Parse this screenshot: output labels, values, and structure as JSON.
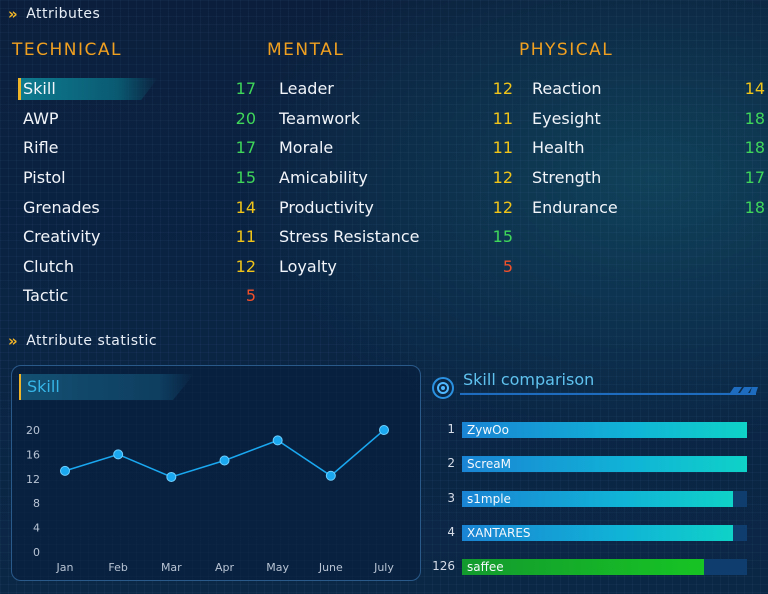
{
  "header": {
    "title": "Attributes"
  },
  "technical": {
    "title": "TECHNICAL",
    "items": [
      {
        "label": "Skill",
        "value": "17",
        "tier": "green"
      },
      {
        "label": "AWP",
        "value": "20",
        "tier": "green"
      },
      {
        "label": "Rifle",
        "value": "17",
        "tier": "green"
      },
      {
        "label": "Pistol",
        "value": "15",
        "tier": "green"
      },
      {
        "label": "Grenades",
        "value": "14",
        "tier": "yellow"
      },
      {
        "label": "Creativity",
        "value": "11",
        "tier": "yellow"
      },
      {
        "label": "Clutch",
        "value": "12",
        "tier": "yellow"
      },
      {
        "label": "Tactic",
        "value": "5",
        "tier": "red"
      }
    ]
  },
  "mental": {
    "title": "MENTAL",
    "items": [
      {
        "label": "Leader",
        "value": "12",
        "tier": "yellow"
      },
      {
        "label": "Teamwork",
        "value": "11",
        "tier": "yellow"
      },
      {
        "label": "Morale",
        "value": "11",
        "tier": "yellow"
      },
      {
        "label": "Amicability",
        "value": "12",
        "tier": "yellow"
      },
      {
        "label": "Productivity",
        "value": "12",
        "tier": "yellow"
      },
      {
        "label": "Stress Resistance",
        "value": "15",
        "tier": "green"
      },
      {
        "label": "Loyalty",
        "value": "5",
        "tier": "red"
      }
    ]
  },
  "physical": {
    "title": "PHYSICAL",
    "items": [
      {
        "label": "Reaction",
        "value": "14",
        "tier": "yellow"
      },
      {
        "label": "Eyesight",
        "value": "18",
        "tier": "green"
      },
      {
        "label": "Health",
        "value": "18",
        "tier": "green"
      },
      {
        "label": "Strength",
        "value": "17",
        "tier": "green"
      },
      {
        "label": "Endurance",
        "value": "18",
        "tier": "green"
      }
    ]
  },
  "statistic": {
    "title": "Attribute statistic"
  },
  "chart_data": {
    "type": "line",
    "title": "Skill",
    "categories": [
      "Jan",
      "Feb",
      "Mar",
      "Apr",
      "May",
      "June",
      "July"
    ],
    "values": [
      13.3,
      16,
      12.3,
      15,
      18.3,
      12.5,
      20
    ],
    "yticks": [
      "20",
      "16",
      "12",
      "8",
      "4",
      "0"
    ],
    "ylim": [
      0,
      20
    ],
    "color": "#1aa8f0"
  },
  "comparison": {
    "title": "Skill comparison",
    "rows": [
      {
        "rank": "1",
        "name": "ZywOo",
        "fill": 1.0,
        "me": false
      },
      {
        "rank": "2",
        "name": "ScreaM",
        "fill": 1.0,
        "me": false
      },
      {
        "rank": "3",
        "name": "s1mple",
        "fill": 0.95,
        "me": false
      },
      {
        "rank": "4",
        "name": "XANTARES",
        "fill": 0.95,
        "me": false
      },
      {
        "rank": "126",
        "name": "saffee",
        "fill": 0.85,
        "me": true
      }
    ]
  },
  "colors": {
    "green": "#3fd65a",
    "yellow": "#f0c419",
    "red": "#f0502a",
    "accent": "#f0a020"
  }
}
